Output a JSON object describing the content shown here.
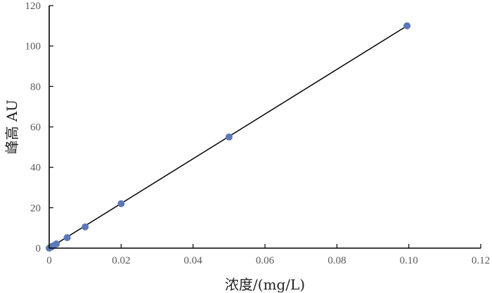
{
  "chart_data": {
    "type": "scatter",
    "xlabel": "浓度/(mg/L)",
    "ylabel": "峰高 AU",
    "xlim": [
      0,
      0.12
    ],
    "ylim": [
      0,
      120
    ],
    "x_ticks": [
      "0",
      "0.02",
      "0.04",
      "0.06",
      "0.08",
      "0.10",
      "0.12"
    ],
    "y_ticks": [
      "0",
      "20",
      "40",
      "60",
      "80",
      "100",
      "120"
    ],
    "grid": false,
    "series": [
      {
        "marker_color": "#5b78b8",
        "points": [
          {
            "x": 0.0,
            "y": 0.0
          },
          {
            "x": 0.0005,
            "y": 0.5
          },
          {
            "x": 0.001,
            "y": 1.1
          },
          {
            "x": 0.002,
            "y": 2.1
          },
          {
            "x": 0.005,
            "y": 5.2
          },
          {
            "x": 0.01,
            "y": 10.5
          },
          {
            "x": 0.02,
            "y": 22.0
          },
          {
            "x": 0.05,
            "y": 55.0
          },
          {
            "x": 0.0995,
            "y": 110.0
          }
        ]
      }
    ],
    "fit_line": {
      "color": "#000000",
      "x": [
        0.0,
        0.0995
      ],
      "y": [
        0.0,
        110.0
      ]
    }
  }
}
